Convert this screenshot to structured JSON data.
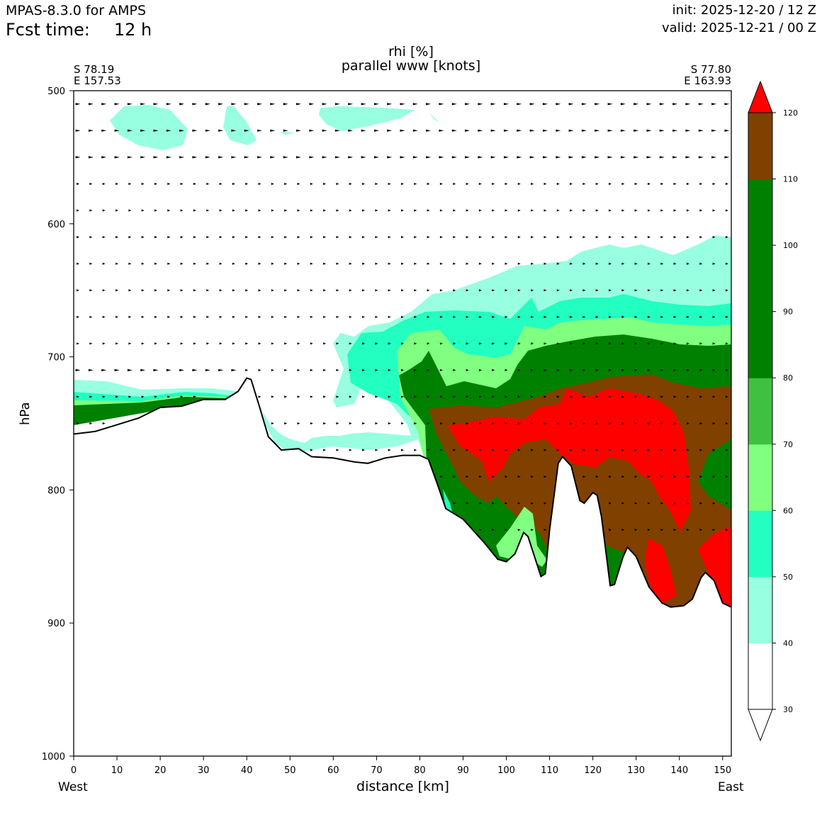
{
  "header": {
    "model": "MPAS-8.3.0 for AMPS",
    "fcst_label": "Fcst time:",
    "fcst_value": "12 h",
    "init": "init: 2025-12-20 / 12 Z",
    "valid": "valid: 2025-12-21 / 00 Z"
  },
  "chart_data": {
    "type": "contourf",
    "title_line1": "rhi [%]",
    "title_line2": "parallel www [knots]",
    "xlabel": "distance [km]",
    "ylabel": "hPa",
    "x_left_end_label": "West",
    "x_right_end_label": "East",
    "start_point": {
      "lat": "S 78.19",
      "lon": "E 157.53"
    },
    "end_point": {
      "lat": "S 77.80",
      "lon": "E 163.93"
    },
    "xlim": [
      0,
      152
    ],
    "ylim": [
      1000,
      500
    ],
    "y_inverted": true,
    "x_ticks": [
      0,
      10,
      20,
      30,
      40,
      50,
      60,
      70,
      80,
      90,
      100,
      110,
      120,
      130,
      140,
      150
    ],
    "y_ticks": [
      500,
      600,
      700,
      800,
      900,
      1000
    ],
    "colorbar": {
      "levels": [
        30,
        40,
        50,
        60,
        70,
        80,
        90,
        100,
        110,
        120
      ],
      "colors": [
        "#ffffff",
        "#98ffe0",
        "#22ffc0",
        "#80ff80",
        "#40c040",
        "#008000",
        "#008000",
        "#008000",
        "#804000",
        "#ff0000"
      ],
      "extend": "both"
    },
    "terrain": [
      {
        "x": 0,
        "p": 758
      },
      {
        "x": 5,
        "p": 756
      },
      {
        "x": 10,
        "p": 751
      },
      {
        "x": 15,
        "p": 746
      },
      {
        "x": 20,
        "p": 738
      },
      {
        "x": 25,
        "p": 737
      },
      {
        "x": 30,
        "p": 732
      },
      {
        "x": 35,
        "p": 732
      },
      {
        "x": 38,
        "p": 726
      },
      {
        "x": 40,
        "p": 716
      },
      {
        "x": 41,
        "p": 717
      },
      {
        "x": 43,
        "p": 738
      },
      {
        "x": 45,
        "p": 760
      },
      {
        "x": 48,
        "p": 770
      },
      {
        "x": 52,
        "p": 769
      },
      {
        "x": 55,
        "p": 775
      },
      {
        "x": 60,
        "p": 776
      },
      {
        "x": 65,
        "p": 779
      },
      {
        "x": 68,
        "p": 780
      },
      {
        "x": 72,
        "p": 776
      },
      {
        "x": 76,
        "p": 774
      },
      {
        "x": 80,
        "p": 774
      },
      {
        "x": 82,
        "p": 777
      },
      {
        "x": 84,
        "p": 795
      },
      {
        "x": 86,
        "p": 814
      },
      {
        "x": 90,
        "p": 822
      },
      {
        "x": 95,
        "p": 840
      },
      {
        "x": 98,
        "p": 852
      },
      {
        "x": 100,
        "p": 854
      },
      {
        "x": 102,
        "p": 848
      },
      {
        "x": 104,
        "p": 832
      },
      {
        "x": 105,
        "p": 835
      },
      {
        "x": 106,
        "p": 845
      },
      {
        "x": 108,
        "p": 865
      },
      {
        "x": 109,
        "p": 863
      },
      {
        "x": 110,
        "p": 830
      },
      {
        "x": 112,
        "p": 780
      },
      {
        "x": 113,
        "p": 775
      },
      {
        "x": 115,
        "p": 782
      },
      {
        "x": 117,
        "p": 808
      },
      {
        "x": 118,
        "p": 810
      },
      {
        "x": 120,
        "p": 802
      },
      {
        "x": 121,
        "p": 804
      },
      {
        "x": 122,
        "p": 820
      },
      {
        "x": 124,
        "p": 872
      },
      {
        "x": 125,
        "p": 871
      },
      {
        "x": 127,
        "p": 850
      },
      {
        "x": 128,
        "p": 843
      },
      {
        "x": 130,
        "p": 850
      },
      {
        "x": 133,
        "p": 873
      },
      {
        "x": 136,
        "p": 885
      },
      {
        "x": 138,
        "p": 888
      },
      {
        "x": 141,
        "p": 887
      },
      {
        "x": 143,
        "p": 882
      },
      {
        "x": 145,
        "p": 866
      },
      {
        "x": 146,
        "p": 862
      },
      {
        "x": 148,
        "p": 868
      },
      {
        "x": 150,
        "p": 885
      },
      {
        "x": 152,
        "p": 888
      }
    ]
  }
}
